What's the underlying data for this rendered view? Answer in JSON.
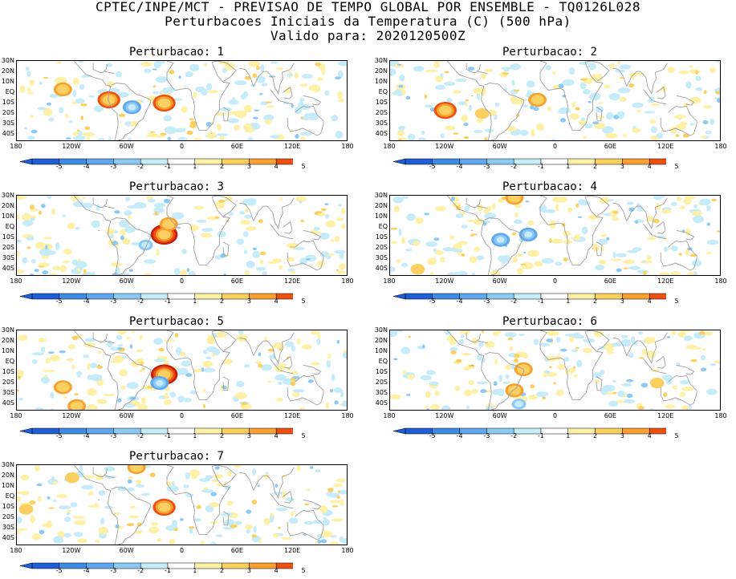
{
  "header": {
    "line1": "CPTEC/INPE/MCT - PREVISAO DE TEMPO GLOBAL POR ENSEMBLE - TQ0126L028",
    "line2": "Perturbacoes Iniciais da Temperatura (C) (500 hPa)",
    "line3": "Valido para: 2020120500Z"
  },
  "axes": {
    "lat_labels": [
      "30N",
      "20N",
      "10N",
      "EQ",
      "10S",
      "20S",
      "30S",
      "40S"
    ],
    "lon_labels": [
      "180",
      "120W",
      "60W",
      "0",
      "60E",
      "120E",
      "180"
    ]
  },
  "colorbar": {
    "labels": [
      "-5",
      "-4",
      "-3",
      "-2",
      "-1",
      "1",
      "2",
      "3",
      "4",
      "5"
    ],
    "colors": [
      "#1e5fd6",
      "#3c8ce6",
      "#5fa8ef",
      "#8ccaf5",
      "#c6ecfa",
      "#ffffff",
      "#fff0a8",
      "#fcd060",
      "#f8a030",
      "#ee5010",
      "#c81e08",
      "#a00000"
    ]
  },
  "panels": [
    {
      "title": "Perturbacao: 1",
      "hotspots": [
        {
          "lon": -80,
          "lat": -5,
          "v": 4
        },
        {
          "lon": -20,
          "lat": -8,
          "v": 4
        },
        {
          "lon": -55,
          "lat": -12,
          "v": -3
        },
        {
          "lon": -130,
          "lat": 5,
          "v": 3
        }
      ]
    },
    {
      "title": "Perturbacao: 2",
      "hotspots": [
        {
          "lon": -120,
          "lat": -15,
          "v": 4
        },
        {
          "lon": -20,
          "lat": -5,
          "v": 3
        },
        {
          "lon": -80,
          "lat": -18,
          "v": 2
        }
      ]
    },
    {
      "title": "Perturbacao: 3",
      "hotspots": [
        {
          "lon": -20,
          "lat": -5,
          "v": 5
        },
        {
          "lon": -15,
          "lat": 5,
          "v": 3
        },
        {
          "lon": -40,
          "lat": -15,
          "v": -2
        }
      ]
    },
    {
      "title": "Perturbacao: 4",
      "hotspots": [
        {
          "lon": -60,
          "lat": -10,
          "v": -3
        },
        {
          "lon": -30,
          "lat": -5,
          "v": -3
        },
        {
          "lon": -45,
          "lat": 30,
          "v": 3
        },
        {
          "lon": -150,
          "lat": -38,
          "v": 2
        }
      ]
    },
    {
      "title": "Perturbacao: 5",
      "hotspots": [
        {
          "lon": -20,
          "lat": -10,
          "v": 5
        },
        {
          "lon": -25,
          "lat": -18,
          "v": -3
        },
        {
          "lon": -130,
          "lat": -22,
          "v": 3
        },
        {
          "lon": -115,
          "lat": -40,
          "v": 3
        }
      ]
    },
    {
      "title": "Perturbacao: 6",
      "hotspots": [
        {
          "lon": -35,
          "lat": -5,
          "v": 3
        },
        {
          "lon": -45,
          "lat": -25,
          "v": 3
        },
        {
          "lon": -40,
          "lat": -38,
          "v": -2
        },
        {
          "lon": 110,
          "lat": -18,
          "v": 2
        }
      ]
    },
    {
      "title": "Perturbacao: 7",
      "hotspots": [
        {
          "lon": -20,
          "lat": -8,
          "v": 4
        },
        {
          "lon": -50,
          "lat": 30,
          "v": 3
        },
        {
          "lon": -120,
          "lat": 20,
          "v": 2
        },
        {
          "lon": -170,
          "lat": -10,
          "v": 2
        }
      ]
    }
  ]
}
